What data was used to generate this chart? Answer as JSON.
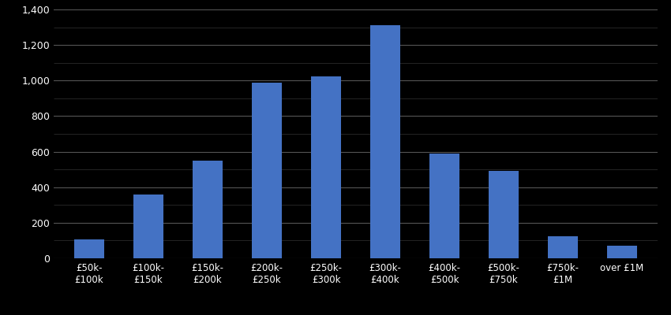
{
  "categories": [
    "£50k-\n£100k",
    "£100k-\n£150k",
    "£150k-\n£200k",
    "£200k-\n£250k",
    "£250k-\n£300k",
    "£300k-\n£400k",
    "£400k-\n£500k",
    "£500k-\n£750k",
    "£750k-\n£1M",
    "over £1M"
  ],
  "values": [
    105,
    360,
    550,
    990,
    1025,
    1310,
    590,
    490,
    125,
    70
  ],
  "bar_color": "#4472c4",
  "background_color": "#000000",
  "text_color": "#ffffff",
  "grid_color": "#555555",
  "minor_grid_color": "#333333",
  "ylim": [
    0,
    1400
  ],
  "yticks": [
    0,
    200,
    400,
    600,
    800,
    1000,
    1200,
    1400
  ]
}
